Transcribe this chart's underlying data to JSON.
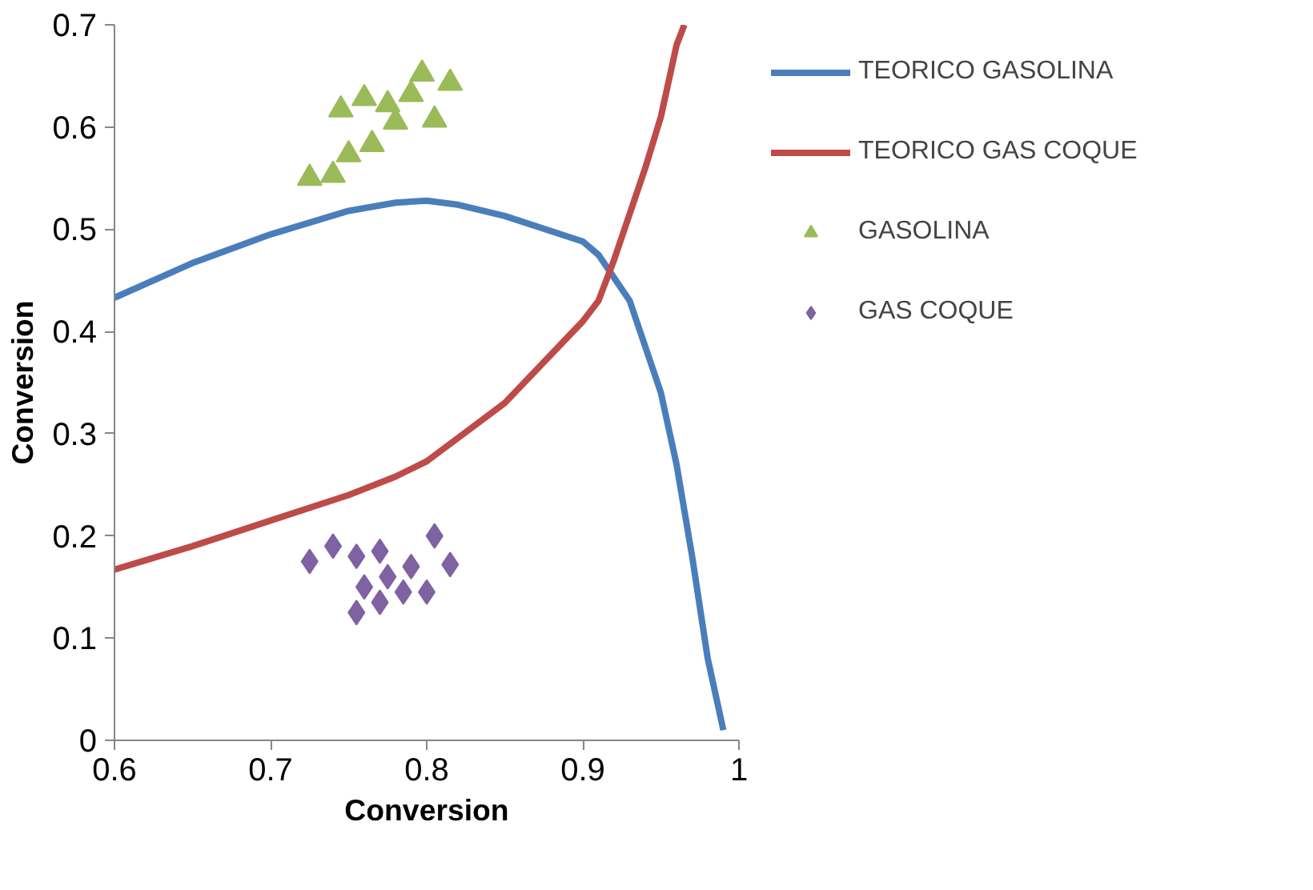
{
  "chart_data": {
    "type": "scatter",
    "xlabel": "Conversion",
    "ylabel": "Conversion",
    "xlim": [
      0.6,
      1
    ],
    "ylim": [
      0,
      0.7
    ],
    "xticks": [
      0.6,
      0.7,
      0.8,
      0.9,
      1
    ],
    "yticks": [
      0,
      0.1,
      0.2,
      0.3,
      0.4,
      0.5,
      0.6,
      0.7
    ],
    "grid": false,
    "legend": "right",
    "series": [
      {
        "name": "TEORICO GASOLINA",
        "type": "line",
        "color": "#4a7ebb",
        "line_style": "solid",
        "marker": "none",
        "x": [
          0.6,
          0.65,
          0.7,
          0.75,
          0.78,
          0.8,
          0.82,
          0.85,
          0.9,
          0.91,
          0.93,
          0.95,
          0.96,
          0.97,
          0.98,
          0.99
        ],
        "values": [
          0.433,
          0.467,
          0.495,
          0.518,
          0.526,
          0.528,
          0.524,
          0.513,
          0.488,
          0.475,
          0.43,
          0.34,
          0.27,
          0.18,
          0.08,
          0.01
        ]
      },
      {
        "name": "TEORICO GAS COQUE",
        "type": "line",
        "color": "#be4b48",
        "line_style": "solid",
        "marker": "none",
        "x": [
          0.6,
          0.65,
          0.7,
          0.75,
          0.78,
          0.8,
          0.85,
          0.9,
          0.91,
          0.92,
          0.93,
          0.94,
          0.95,
          0.96,
          0.965
        ],
        "values": [
          0.167,
          0.19,
          0.215,
          0.24,
          0.258,
          0.273,
          0.33,
          0.41,
          0.43,
          0.47,
          0.515,
          0.56,
          0.61,
          0.68,
          0.7
        ]
      },
      {
        "name": "GASOLINA",
        "color": "#9bbb59",
        "marker": "triangle",
        "x": [
          0.725,
          0.74,
          0.75,
          0.765,
          0.745,
          0.76,
          0.775,
          0.79,
          0.797,
          0.815,
          0.805,
          0.78
        ],
        "values": [
          0.55,
          0.553,
          0.573,
          0.583,
          0.617,
          0.628,
          0.622,
          0.632,
          0.652,
          0.643,
          0.607,
          0.605
        ]
      },
      {
        "name": "GAS COQUE",
        "color": "#7e62a1",
        "marker": "diamond",
        "x": [
          0.725,
          0.74,
          0.755,
          0.77,
          0.76,
          0.775,
          0.755,
          0.79,
          0.8,
          0.805,
          0.815,
          0.785,
          0.77
        ],
        "values": [
          0.175,
          0.19,
          0.18,
          0.185,
          0.15,
          0.16,
          0.125,
          0.17,
          0.145,
          0.2,
          0.172,
          0.145,
          0.135
        ]
      }
    ]
  }
}
